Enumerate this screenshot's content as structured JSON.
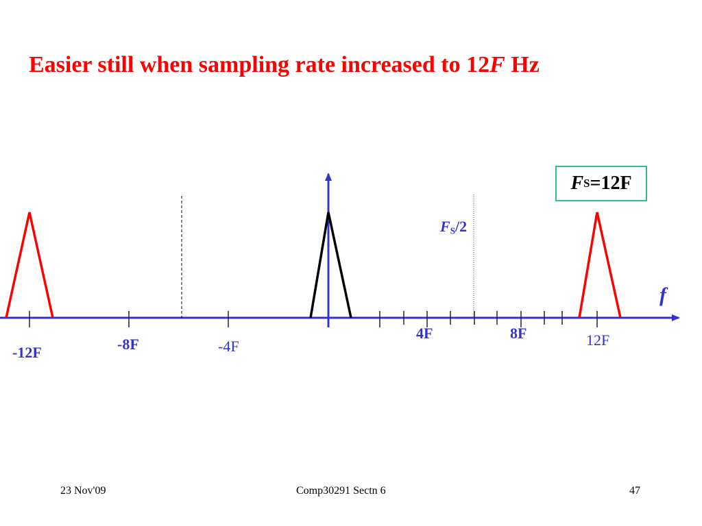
{
  "slide": {
    "title": {
      "prefix": "Easier still when sampling rate increased to 12",
      "italic": "F",
      "suffix": " Hz"
    },
    "fs_box": {
      "italic": "F",
      "sub": "S",
      "rest": "=12F"
    },
    "fs_half": {
      "italic": "F",
      "sub": "S",
      "rest": "/2"
    },
    "axis_label": "f",
    "tick_labels": {
      "neg12": "-12F",
      "neg8": "-8F",
      "neg4": "-4F",
      "pos4": "4F",
      "pos8": "8F",
      "pos12": "12F"
    },
    "footer": {
      "date": "23 Nov'09",
      "course": "Comp30291 Sectn 6",
      "page": "47"
    },
    "colors": {
      "title": "#ff0000",
      "axis": "#3333cc",
      "spectrum_baseband": "#000000",
      "spectrum_images": "#ff0000",
      "fs_box_border": "#33bb99"
    }
  }
}
